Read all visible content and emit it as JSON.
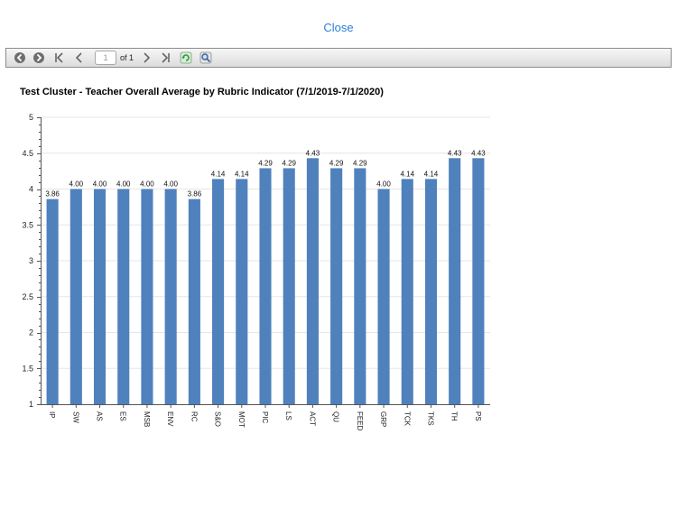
{
  "close_label": "Close",
  "toolbar": {
    "page_value": "1",
    "page_total": "of 1",
    "buttons": [
      "back-icon",
      "forward-icon",
      "first-page-icon",
      "prev-page-icon",
      "next-page-icon",
      "last-page-icon",
      "refresh-icon",
      "zoom-icon"
    ]
  },
  "chart_data": {
    "type": "bar",
    "title": "Test Cluster - Teacher Overall Average by Rubric Indicator (7/1/2019-7/1/2020)",
    "categories": [
      "IP",
      "SW",
      "AS",
      "ES",
      "MSB",
      "ENV",
      "RC",
      "S&O",
      "MOT",
      "PIC",
      "LS",
      "ACT",
      "QU",
      "FEED",
      "GRP",
      "TCK",
      "TKS",
      "TH",
      "PS"
    ],
    "values": [
      3.86,
      4.0,
      4.0,
      4.0,
      4.0,
      4.0,
      3.86,
      4.14,
      4.14,
      4.29,
      4.29,
      4.43,
      4.29,
      4.29,
      4.0,
      4.14,
      4.14,
      4.43,
      4.43
    ],
    "value_labels": [
      "3.86",
      "4.00",
      "4.00",
      "4.00",
      "4.00",
      "4.00",
      "3.86",
      "4.14",
      "4.14",
      "4.29",
      "4.29",
      "4.43",
      "4.29",
      "4.29",
      "4.00",
      "4.14",
      "4.14",
      "4.43",
      "4.43"
    ],
    "ylim": [
      1,
      5
    ],
    "yticks": [
      "1",
      "1.5",
      "2",
      "2.5",
      "3",
      "3.5",
      "4",
      "4.5",
      "5"
    ],
    "bar_color": "#4f81bd",
    "grid": true,
    "legend": "none"
  }
}
